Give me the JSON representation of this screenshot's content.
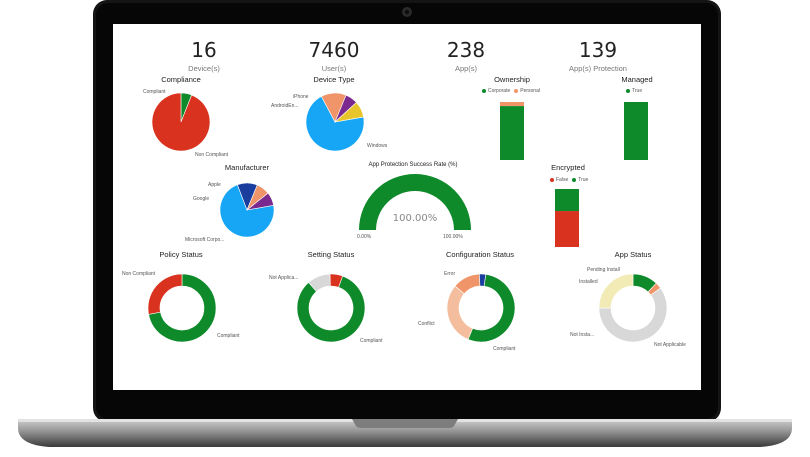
{
  "kpis": [
    {
      "value": "16",
      "label": "Device(s)"
    },
    {
      "value": "7460",
      "label": "User(s)"
    },
    {
      "value": "238",
      "label": "App(s)"
    },
    {
      "value": "139",
      "label": "App(s) Protection"
    }
  ],
  "colors": {
    "green": "#0e8a2a",
    "red": "#d9321e",
    "blue": "#16a6f5",
    "orange": "#f0956a",
    "purple": "#7a2a8f",
    "yellow": "#e8c52a",
    "navy": "#1a3e9e",
    "gray": "#d8d8d8",
    "peach": "#f4bd9d",
    "cream": "#f3ebb6"
  },
  "chart_data": [
    {
      "type": "pie",
      "title": "Compliance",
      "slices": [
        {
          "label": "Compliant",
          "value": 6,
          "color": "#0e8a2a"
        },
        {
          "label": "Non Compliant",
          "value": 94,
          "color": "#d9321e"
        }
      ]
    },
    {
      "type": "pie",
      "title": "Device Type",
      "slices": [
        {
          "label": "Windows",
          "value": 70,
          "color": "#16a6f5"
        },
        {
          "label": "AndroidEn...",
          "value": 14,
          "color": "#f0956a"
        },
        {
          "label": "",
          "value": 7,
          "color": "#7a2a8f"
        },
        {
          "label": "iPhone",
          "value": 9,
          "color": "#e8c52a"
        }
      ]
    },
    {
      "type": "pie",
      "title": "Manufacturer",
      "slices": [
        {
          "label": "Microsoft Corpo...",
          "value": 72,
          "color": "#16a6f5"
        },
        {
          "label": "Google",
          "value": 12,
          "color": "#1a3e9e"
        },
        {
          "label": "Apple",
          "value": 8,
          "color": "#f0956a"
        },
        {
          "label": "",
          "value": 8,
          "color": "#7a2a8f"
        }
      ]
    },
    {
      "type": "gauge",
      "title": "App Protection Success Rate (%)",
      "value": 100,
      "min_label": "0.00%",
      "max_label": "100.00%",
      "value_label": "100.00%"
    },
    {
      "type": "bar",
      "title": "Ownership",
      "stacked": true,
      "legend": [
        {
          "label": "Corporate",
          "color": "#0e8a2a"
        },
        {
          "label": "Personal",
          "color": "#f0956a"
        }
      ],
      "series": [
        {
          "name": "Corporate",
          "values": [
            93
          ]
        },
        {
          "name": "Personal",
          "values": [
            7
          ]
        }
      ]
    },
    {
      "type": "bar",
      "title": "Managed",
      "stacked": true,
      "legend": [
        {
          "label": "True",
          "color": "#0e8a2a"
        }
      ],
      "series": [
        {
          "name": "True",
          "values": [
            100
          ]
        }
      ]
    },
    {
      "type": "bar",
      "title": "Encrypted",
      "stacked": true,
      "legend": [
        {
          "label": "False",
          "color": "#d9321e"
        },
        {
          "label": "True",
          "color": "#0e8a2a"
        }
      ],
      "series": [
        {
          "name": "False",
          "values": [
            62
          ]
        },
        {
          "name": "True",
          "values": [
            38
          ]
        }
      ]
    },
    {
      "type": "pie",
      "title": "Policy Status",
      "donut": true,
      "slices": [
        {
          "label": "Compliant",
          "value": 72,
          "color": "#0e8a2a"
        },
        {
          "label": "Non Compliant",
          "value": 28,
          "color": "#d9321e"
        }
      ]
    },
    {
      "type": "pie",
      "title": "Setting Status",
      "donut": true,
      "slices": [
        {
          "label": "Compliant",
          "value": 83,
          "color": "#0e8a2a"
        },
        {
          "label": "Not Applica...",
          "value": 11,
          "color": "#d8d8d8"
        },
        {
          "label": "",
          "value": 6,
          "color": "#d9321e"
        }
      ]
    },
    {
      "type": "pie",
      "title": "Configuration Status",
      "donut": true,
      "slices": [
        {
          "label": "Compliant",
          "value": 54,
          "color": "#0e8a2a"
        },
        {
          "label": "Conflict",
          "value": 30,
          "color": "#f4bd9d"
        },
        {
          "label": "Error",
          "value": 13,
          "color": "#f0956a"
        },
        {
          "label": "",
          "value": 3,
          "color": "#1a3e9e"
        }
      ]
    },
    {
      "type": "pie",
      "title": "App Status",
      "donut": true,
      "slices": [
        {
          "label": "Installed",
          "value": 12,
          "color": "#0e8a2a"
        },
        {
          "label": "Pending Install",
          "value": 3,
          "color": "#f0956a"
        },
        {
          "label": "Not Applicable",
          "value": 60,
          "color": "#d8d8d8"
        },
        {
          "label": "Not Insta...",
          "value": 25,
          "color": "#f3ebb6"
        }
      ]
    }
  ]
}
